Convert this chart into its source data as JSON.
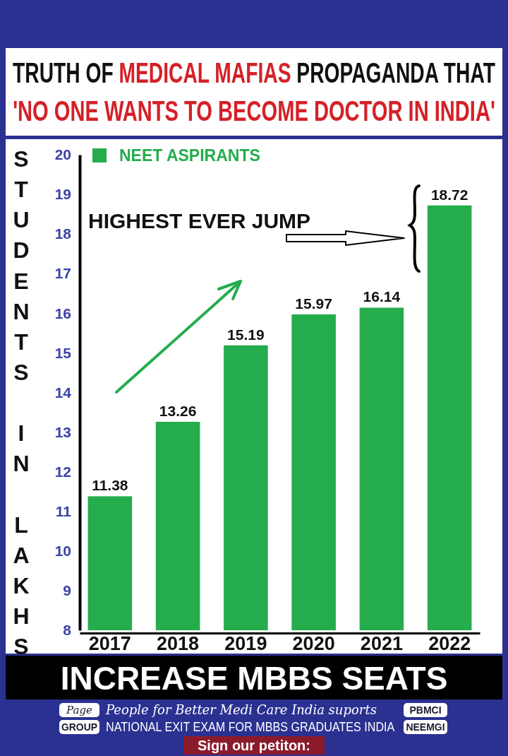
{
  "chart_data": {
    "type": "bar",
    "title": "TRUTH OF MEDICAL MAFIAS PROPAGANDA THAT",
    "subtitle": "'NO ONE WANTS TO BECOME DOCTOR IN INDIA'",
    "ylabel": "STUDENTS IN LAKHS",
    "categories": [
      "2017",
      "2018",
      "2019",
      "2020",
      "2021",
      "2022"
    ],
    "series": [
      {
        "name": "NEET ASPIRANTS",
        "color": "#25ad4d",
        "values": [
          11.38,
          13.26,
          15.19,
          15.97,
          16.14,
          18.72
        ]
      }
    ],
    "ylim": [
      8,
      20
    ],
    "yticks": [
      8,
      9,
      10,
      11,
      12,
      13,
      14,
      15,
      16,
      17,
      18,
      19,
      20
    ],
    "data_labels": true,
    "legend": "top left",
    "annotations": [
      "HIGHEST EVER JUMP",
      "INCREASE MBBS SEATS",
      "Page",
      "People for Better Medi Care India suports",
      "PBMCI",
      "GROUP",
      "NATIONAL EXIT EXAM FOR MBBS GRADUATES INDIA",
      "NEEMGI",
      "Sign our petiton:"
    ]
  }
}
